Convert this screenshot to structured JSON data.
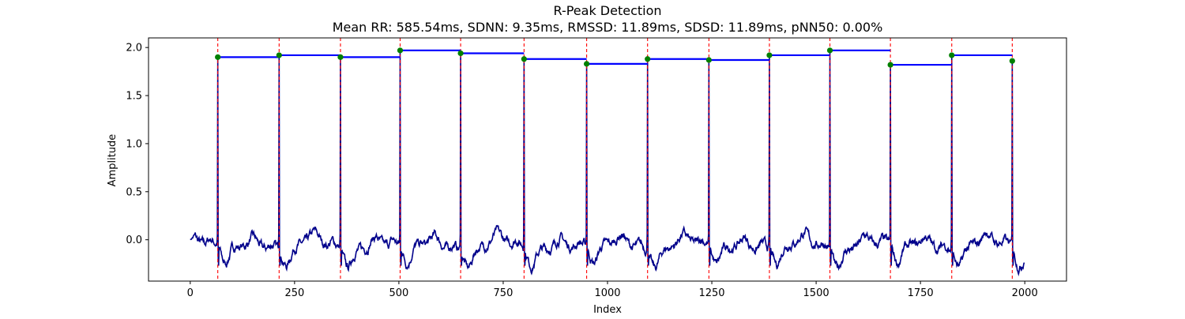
{
  "chart_data": {
    "type": "line",
    "title": "R-Peak Detection",
    "subtitle": "Mean RR: 585.54ms, SDNN: 9.35ms, RMSSD: 11.89ms, SDSD: 11.89ms, pNN50: 0.00%",
    "xlabel": "Index",
    "ylabel": "Amplitude",
    "xlim": [
      -100,
      2100
    ],
    "ylim": [
      -0.43,
      2.1
    ],
    "x_ticks": [
      0,
      250,
      500,
      750,
      1000,
      1250,
      1500,
      1750,
      2000
    ],
    "x_tick_labels": [
      "0",
      "250",
      "500",
      "750",
      "1000",
      "1250",
      "1500",
      "1750",
      "2000"
    ],
    "y_ticks": [
      0.0,
      0.5,
      1.0,
      1.5,
      2.0
    ],
    "y_tick_labels": [
      "0.0",
      "0.5",
      "1.0",
      "1.5",
      "2.0"
    ],
    "grid": false,
    "n_samples": 2000,
    "baseline_min": -0.3,
    "baseline_max": 0.2,
    "peak_marker_color": "#008000",
    "peak_line_color": "#ff0000",
    "signal_color": "#00008b",
    "rr_line_color": "#0000ff",
    "r_peaks": [
      {
        "x": 66,
        "y": 1.9
      },
      {
        "x": 213,
        "y": 1.92
      },
      {
        "x": 360,
        "y": 1.9
      },
      {
        "x": 503,
        "y": 1.97
      },
      {
        "x": 648,
        "y": 1.94
      },
      {
        "x": 800,
        "y": 1.88
      },
      {
        "x": 950,
        "y": 1.83
      },
      {
        "x": 1096,
        "y": 1.88
      },
      {
        "x": 1243,
        "y": 1.87
      },
      {
        "x": 1388,
        "y": 1.92
      },
      {
        "x": 1533,
        "y": 1.97
      },
      {
        "x": 1678,
        "y": 1.82
      },
      {
        "x": 1825,
        "y": 1.92
      },
      {
        "x": 1970,
        "y": 1.86
      }
    ]
  }
}
